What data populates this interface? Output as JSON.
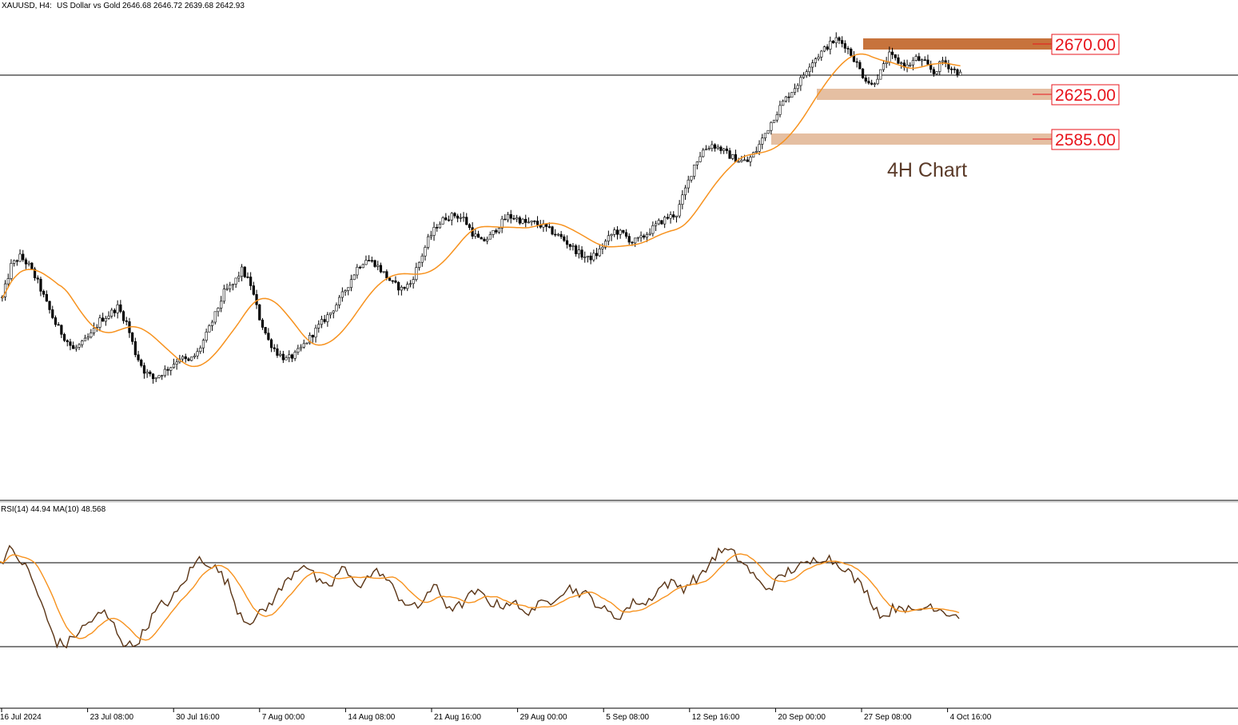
{
  "header": {
    "symbol": "XAUUSD, H4:",
    "description": "US Dollar vs Gold",
    "ohlc": "2646.68 2646.72 2639.68 2642.93"
  },
  "annotation": "4H Chart",
  "levels": [
    {
      "label": "2670.00",
      "value": 2670,
      "style": "dark"
    },
    {
      "label": "2625.00",
      "value": 2625,
      "style": "light"
    },
    {
      "label": "2585.00",
      "value": 2585,
      "style": "light"
    }
  ],
  "rsi_panel": {
    "label": "RSI(14) 44.94 MA(10) 48.568",
    "upper_level": 70,
    "lower_level": 30
  },
  "colors": {
    "candle": "#000000",
    "ma_line": "#f7921e",
    "rsi_line": "#5a3415",
    "rsi_ma": "#f7921e",
    "level_dark": "#c7733c",
    "level_light": "#e5bfa2",
    "level_text": "#e8141c"
  },
  "chart_data": [
    {
      "type": "candlestick",
      "title": "XAUUSD, H4: US Dollar vs Gold",
      "x_tick_labels": [
        "16 Jul 2024",
        "23 Jul 08:00",
        "30 Jul 16:00",
        "7 Aug 00:00",
        "14 Aug 08:00",
        "21 Aug 16:00",
        "29 Aug 00:00",
        "5 Sep 08:00",
        "12 Sep 16:00",
        "20 Sep 00:00",
        "27 Sep 08:00",
        "4 Oct 16:00"
      ],
      "ylim": [
        2340,
        2690
      ],
      "current_price": 2642.93,
      "series": [
        {
          "name": "",
          "close_path": [
            [
              0,
              2443
            ],
            [
              3,
              2472
            ],
            [
              6,
              2480
            ],
            [
              9,
              2472
            ],
            [
              12,
              2457
            ],
            [
              15,
              2438
            ],
            [
              18,
              2420
            ],
            [
              21,
              2408
            ],
            [
              24,
              2397
            ],
            [
              27,
              2402
            ],
            [
              30,
              2410
            ],
            [
              33,
              2423
            ],
            [
              36,
              2428
            ],
            [
              39,
              2435
            ],
            [
              42,
              2421
            ],
            [
              45,
              2394
            ],
            [
              48,
              2378
            ],
            [
              51,
              2371
            ],
            [
              54,
              2376
            ],
            [
              57,
              2382
            ],
            [
              60,
              2390
            ],
            [
              63,
              2386
            ],
            [
              66,
              2394
            ],
            [
              69,
              2410
            ],
            [
              72,
              2428
            ],
            [
              75,
              2448
            ],
            [
              78,
              2455
            ],
            [
              81,
              2468
            ],
            [
              84,
              2455
            ],
            [
              87,
              2425
            ],
            [
              90,
              2405
            ],
            [
              93,
              2394
            ],
            [
              96,
              2388
            ],
            [
              99,
              2392
            ],
            [
              102,
              2401
            ],
            [
              105,
              2411
            ],
            [
              108,
              2421
            ],
            [
              111,
              2430
            ],
            [
              114,
              2441
            ],
            [
              117,
              2455
            ],
            [
              120,
              2470
            ],
            [
              123,
              2478
            ],
            [
              126,
              2474
            ],
            [
              129,
              2465
            ],
            [
              132,
              2456
            ],
            [
              135,
              2451
            ],
            [
              138,
              2456
            ],
            [
              141,
              2475
            ],
            [
              144,
              2495
            ],
            [
              147,
              2508
            ],
            [
              150,
              2515
            ],
            [
              153,
              2517
            ],
            [
              156,
              2514
            ],
            [
              159,
              2501
            ],
            [
              162,
              2493
            ],
            [
              165,
              2498
            ],
            [
              168,
              2508
            ],
            [
              171,
              2516
            ],
            [
              174,
              2514
            ],
            [
              177,
              2510
            ],
            [
              180,
              2510
            ],
            [
              183,
              2507
            ],
            [
              186,
              2502
            ],
            [
              189,
              2497
            ],
            [
              192,
              2490
            ],
            [
              195,
              2483
            ],
            [
              198,
              2478
            ],
            [
              201,
              2482
            ],
            [
              204,
              2493
            ],
            [
              207,
              2503
            ],
            [
              210,
              2500
            ],
            [
              213,
              2493
            ],
            [
              216,
              2496
            ],
            [
              219,
              2503
            ],
            [
              222,
              2510
            ],
            [
              225,
              2515
            ],
            [
              228,
              2518
            ],
            [
              231,
              2540
            ],
            [
              234,
              2562
            ],
            [
              237,
              2575
            ],
            [
              240,
              2580
            ],
            [
              243,
              2576
            ],
            [
              246,
              2570
            ],
            [
              249,
              2566
            ],
            [
              252,
              2565
            ],
            [
              255,
              2575
            ],
            [
              258,
              2590
            ],
            [
              261,
              2605
            ],
            [
              264,
              2618
            ],
            [
              267,
              2628
            ],
            [
              270,
              2638
            ],
            [
              273,
              2652
            ],
            [
              276,
              2660
            ],
            [
              279,
              2668
            ],
            [
              282,
              2674
            ],
            [
              285,
              2669
            ],
            [
              288,
              2657
            ],
            [
              291,
              2642
            ],
            [
              294,
              2633
            ],
            [
              297,
              2645
            ],
            [
              300,
              2660
            ],
            [
              303,
              2654
            ],
            [
              306,
              2650
            ],
            [
              309,
              2657
            ],
            [
              312,
              2653
            ],
            [
              315,
              2644
            ],
            [
              318,
              2655
            ],
            [
              321,
              2648
            ],
            [
              324,
              2642.93
            ]
          ]
        },
        {
          "name": "",
          "type": "line",
          "role": "moving average"
        }
      ]
    },
    {
      "type": "line",
      "title": "RSI(14) 44.94 MA(10) 48.568",
      "ylim": [
        0,
        100
      ],
      "hlines": [
        70,
        30
      ],
      "series": [
        {
          "name": "RSI(14)",
          "points": [
            [
              0,
              70
            ],
            [
              3,
              76
            ],
            [
              6,
              72
            ],
            [
              9,
              66
            ],
            [
              12,
              55
            ],
            [
              15,
              42
            ],
            [
              18,
              32
            ],
            [
              21,
              31
            ],
            [
              24,
              36
            ],
            [
              27,
              40
            ],
            [
              30,
              44
            ],
            [
              33,
              46
            ],
            [
              36,
              40
            ],
            [
              39,
              32
            ],
            [
              42,
              30
            ],
            [
              45,
              36
            ],
            [
              48,
              44
            ],
            [
              51,
              50
            ],
            [
              54,
              52
            ],
            [
              57,
              58
            ],
            [
              60,
              66
            ],
            [
              63,
              72
            ],
            [
              66,
              70
            ],
            [
              69,
              66
            ],
            [
              72,
              60
            ],
            [
              75,
              48
            ],
            [
              78,
              42
            ],
            [
              81,
              44
            ],
            [
              84,
              48
            ],
            [
              87,
              54
            ],
            [
              90,
              60
            ],
            [
              93,
              66
            ],
            [
              96,
              70
            ],
            [
              99,
              64
            ],
            [
              102,
              58
            ],
            [
              105,
              60
            ],
            [
              108,
              68
            ],
            [
              111,
              62
            ],
            [
              114,
              60
            ],
            [
              117,
              64
            ],
            [
              120,
              66
            ],
            [
              123,
              60
            ],
            [
              126,
              54
            ],
            [
              129,
              50
            ],
            [
              132,
              48
            ],
            [
              135,
              56
            ],
            [
              138,
              58
            ],
            [
              141,
              50
            ],
            [
              144,
              48
            ],
            [
              147,
              52
            ],
            [
              150,
              56
            ],
            [
              153,
              54
            ],
            [
              156,
              50
            ],
            [
              159,
              50
            ],
            [
              162,
              52
            ],
            [
              165,
              46
            ],
            [
              168,
              48
            ],
            [
              171,
              50
            ],
            [
              174,
              52
            ],
            [
              177,
              56
            ],
            [
              180,
              58
            ],
            [
              183,
              56
            ],
            [
              186,
              54
            ],
            [
              189,
              50
            ],
            [
              192,
              46
            ],
            [
              195,
              44
            ],
            [
              198,
              48
            ],
            [
              201,
              52
            ],
            [
              204,
              50
            ],
            [
              207,
              56
            ],
            [
              210,
              60
            ],
            [
              213,
              60
            ],
            [
              216,
              58
            ],
            [
              219,
              62
            ],
            [
              222,
              64
            ],
            [
              225,
              72
            ],
            [
              228,
              76
            ],
            [
              231,
              75
            ],
            [
              234,
              71
            ],
            [
              237,
              66
            ],
            [
              240,
              60
            ],
            [
              243,
              58
            ],
            [
              246,
              62
            ],
            [
              249,
              66
            ],
            [
              252,
              68
            ],
            [
              255,
              69
            ],
            [
              258,
              72
            ],
            [
              261,
              73
            ],
            [
              264,
              70
            ],
            [
              267,
              68
            ],
            [
              270,
              62
            ],
            [
              273,
              58
            ],
            [
              276,
              50
            ],
            [
              279,
              44
            ],
            [
              282,
              48
            ],
            [
              285,
              50
            ],
            [
              288,
              46
            ],
            [
              291,
              48
            ],
            [
              294,
              50
            ],
            [
              297,
              48
            ],
            [
              300,
              46
            ],
            [
              303,
              44.94
            ]
          ]
        },
        {
          "name": "MA(10)",
          "values_trail": 48.568
        }
      ]
    }
  ]
}
